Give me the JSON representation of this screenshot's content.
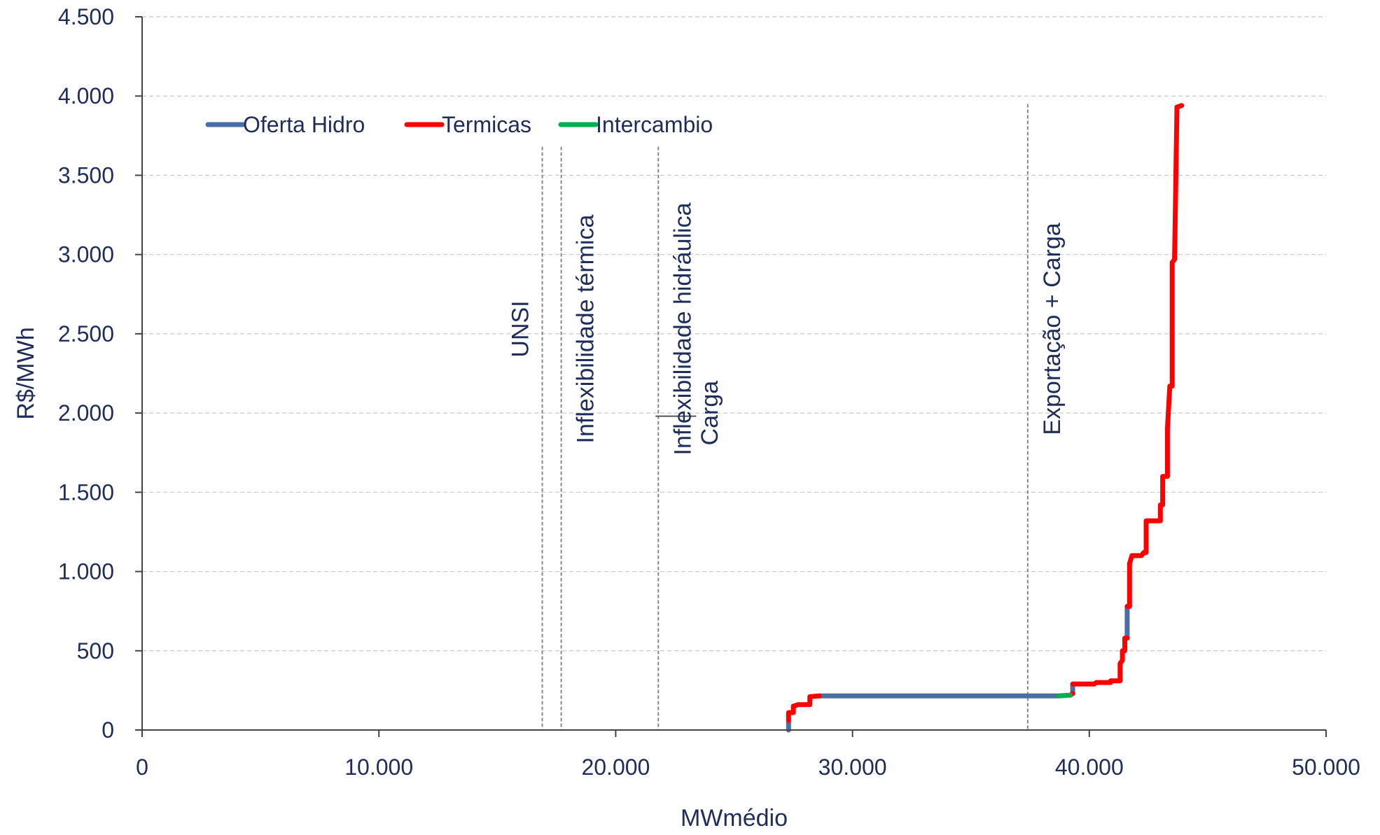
{
  "chart_data": {
    "type": "line",
    "title": "",
    "xlabel": "MWmédio",
    "ylabel": "R$/MWh",
    "xlim": [
      0,
      50000
    ],
    "ylim": [
      0,
      4500
    ],
    "x_ticks": [
      0,
      10000,
      20000,
      30000,
      40000,
      50000
    ],
    "x_tick_labels": [
      "0",
      "10.000",
      "20.000",
      "30.000",
      "40.000",
      "50.000"
    ],
    "y_ticks": [
      0,
      500,
      1000,
      1500,
      2000,
      2500,
      3000,
      3500,
      4000,
      4500
    ],
    "y_tick_labels": [
      "0",
      "500",
      "1.000",
      "1.500",
      "2.000",
      "2.500",
      "3.000",
      "3.500",
      "4.000",
      "4.500"
    ],
    "grid": "horizontal",
    "legend_position": "top-left",
    "legend": [
      {
        "name": "Oferta Hidro",
        "color": "#4a6fa5"
      },
      {
        "name": "Termicas",
        "color": "#ff0000"
      },
      {
        "name": "Intercambio",
        "color": "#00b050"
      }
    ],
    "series": [
      {
        "name": "Oferta Hidro",
        "color": "#4a6fa5",
        "segments": [
          [
            [
              27300,
              0
            ],
            [
              27300,
              60
            ]
          ],
          [
            [
              28600,
              215
            ],
            [
              38700,
              215
            ]
          ],
          [
            [
              39300,
              230
            ],
            [
              39300,
              290
            ]
          ],
          [
            [
              41600,
              580
            ],
            [
              41600,
              780
            ]
          ]
        ]
      },
      {
        "name": "Termicas",
        "color": "#ff0000",
        "segments": [
          [
            [
              27300,
              60
            ],
            [
              27300,
              110
            ],
            [
              27500,
              110
            ],
            [
              27500,
              150
            ],
            [
              27700,
              160
            ],
            [
              28200,
              160
            ],
            [
              28200,
              210
            ],
            [
              28600,
              215
            ]
          ],
          [
            [
              39200,
              220
            ],
            [
              39300,
              230
            ]
          ],
          [
            [
              39300,
              290
            ],
            [
              40200,
              290
            ],
            [
              40300,
              300
            ],
            [
              40900,
              300
            ],
            [
              40900,
              310
            ],
            [
              41300,
              310
            ],
            [
              41300,
              420
            ],
            [
              41400,
              440
            ],
            [
              41400,
              500
            ],
            [
              41500,
              500
            ],
            [
              41500,
              580
            ],
            [
              41600,
              580
            ]
          ],
          [
            [
              41600,
              780
            ],
            [
              41700,
              780
            ],
            [
              41700,
              1050
            ],
            [
              41800,
              1100
            ],
            [
              42200,
              1100
            ],
            [
              42300,
              1120
            ],
            [
              42400,
              1120
            ],
            [
              42400,
              1320
            ],
            [
              43000,
              1320
            ],
            [
              43000,
              1420
            ],
            [
              43100,
              1420
            ],
            [
              43100,
              1600
            ],
            [
              43300,
              1600
            ],
            [
              43300,
              1900
            ],
            [
              43400,
              2170
            ],
            [
              43500,
              2170
            ],
            [
              43500,
              2950
            ],
            [
              43600,
              2970
            ],
            [
              43700,
              3900
            ],
            [
              43700,
              3930
            ],
            [
              43900,
              3940
            ]
          ]
        ]
      },
      {
        "name": "Intercambio",
        "color": "#00b050",
        "segments": [
          [
            [
              38700,
              215
            ],
            [
              39200,
              220
            ]
          ]
        ]
      }
    ],
    "reference_lines": [
      {
        "x": 16900,
        "y_top": 3680,
        "label": "UNSI",
        "label_side": "left"
      },
      {
        "x": 17700,
        "y_top": 3680,
        "label": "Inflexibilidade térmica",
        "label_side": "right"
      },
      {
        "x": 21800,
        "y_top": 3680,
        "label": "Inflexibilidade hidráulica",
        "label_side": "right"
      },
      {
        "x": 37400,
        "y_top": 3950,
        "label": "Exportação + Carga",
        "label_side": "right"
      }
    ],
    "annotations": [
      {
        "text": "Carga",
        "x": 24600,
        "y": 2000
      }
    ]
  }
}
